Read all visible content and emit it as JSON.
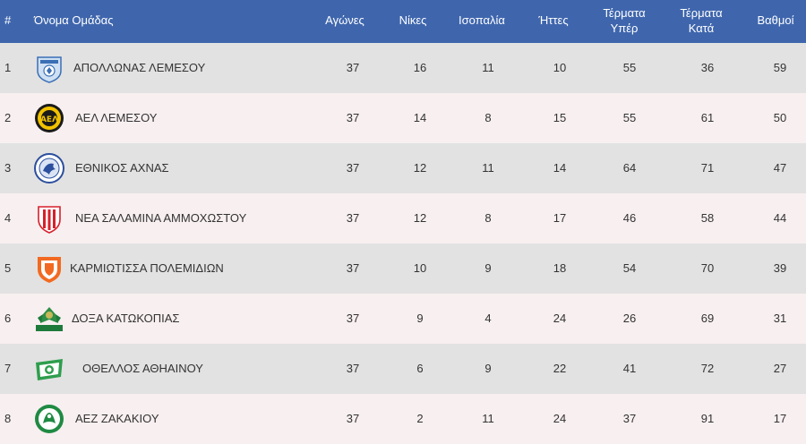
{
  "header": {
    "rank": "#",
    "team": "Όνομα Ομάδας",
    "played": "Αγώνες",
    "wins": "Νίκες",
    "draws": "Ισοπαλία",
    "losses": "Ήττες",
    "goals_for_1": "Τέρματα",
    "goals_for_2": "Υπέρ",
    "goals_against_1": "Τέρματα",
    "goals_against_2": "Κατά",
    "points": "Βαθμοί"
  },
  "rows": [
    {
      "rank": "1",
      "team": "ΑΠΟΛΛΩΝΑΣ ΛΕΜΕΣΟΥ",
      "played": "37",
      "wins": "16",
      "draws": "11",
      "losses": "10",
      "gf": "55",
      "ga": "36",
      "pts": "59",
      "crest_icon": "apollon-crest-icon"
    },
    {
      "rank": "2",
      "team": "ΑΕΛ ΛΕΜΕΣΟΥ",
      "played": "37",
      "wins": "14",
      "draws": "8",
      "losses": "15",
      "gf": "55",
      "ga": "61",
      "pts": "50",
      "crest_icon": "ael-crest-icon"
    },
    {
      "rank": "3",
      "team": "ΕΘΝΙΚΟΣ ΑΧΝΑΣ",
      "played": "37",
      "wins": "12",
      "draws": "11",
      "losses": "14",
      "gf": "64",
      "ga": "71",
      "pts": "47",
      "crest_icon": "ethnikos-crest-icon"
    },
    {
      "rank": "4",
      "team": "ΝΕΑ ΣΑΛΑΜΙΝΑ ΑΜΜΟΧΩΣΤΟΥ",
      "played": "37",
      "wins": "12",
      "draws": "8",
      "losses": "17",
      "gf": "46",
      "ga": "58",
      "pts": "44",
      "crest_icon": "nea-salamina-crest-icon"
    },
    {
      "rank": "5",
      "team": "ΚΑΡΜΙΩΤΙΣΣΑ ΠΟΛΕΜΙΔΙΩΝ",
      "played": "37",
      "wins": "10",
      "draws": "9",
      "losses": "18",
      "gf": "54",
      "ga": "70",
      "pts": "39",
      "crest_icon": "karmiotissa-crest-icon"
    },
    {
      "rank": "6",
      "team": "ΔΟΞΑ ΚΑΤΩΚΟΠΙΑΣ",
      "played": "37",
      "wins": "9",
      "draws": "4",
      "losses": "24",
      "gf": "26",
      "ga": "69",
      "pts": "31",
      "crest_icon": "doxa-crest-icon"
    },
    {
      "rank": "7",
      "team": "ΟΘΕΛΛΟΣ ΑΘΗΑΙΝΟΥ",
      "played": "37",
      "wins": "6",
      "draws": "9",
      "losses": "22",
      "gf": "41",
      "ga": "72",
      "pts": "27",
      "crest_icon": "othellos-crest-icon"
    },
    {
      "rank": "8",
      "team": "ΑΕΖ ΖΑΚΑΚΙΟΥ",
      "played": "37",
      "wins": "2",
      "draws": "11",
      "losses": "24",
      "gf": "37",
      "ga": "91",
      "pts": "17",
      "crest_icon": "aez-crest-icon"
    }
  ],
  "colors": {
    "header_bg": "#3f66ad",
    "row_odd": "#e2e2e2",
    "row_even": "#f8eff0"
  }
}
